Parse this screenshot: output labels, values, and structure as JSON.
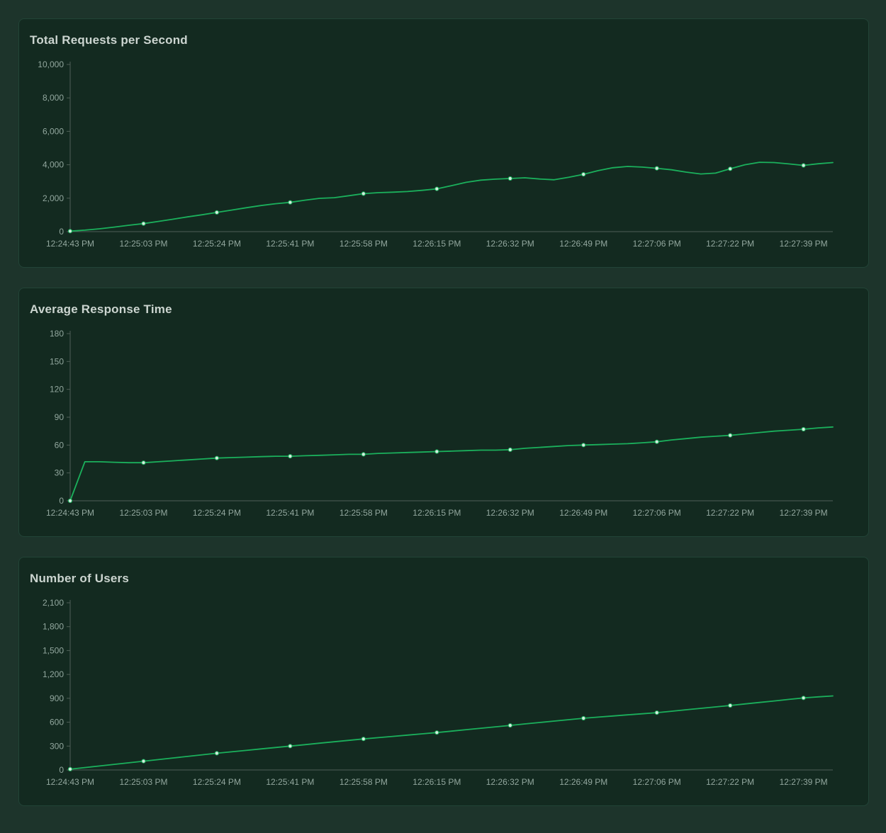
{
  "colors": {
    "page_background": "#1d342b",
    "card_background": "#132a20",
    "title_text": "#ccd5d0",
    "axis_text": "#92a79e",
    "axis_line": "#4f5f57",
    "marker_fill": "#d6eadf",
    "accent_green": "#1bb05c"
  },
  "chart_data": [
    {
      "type": "line",
      "title": "Total Requests per Second",
      "color": "#1bb05c",
      "ylim": [
        0,
        10000
      ],
      "y_ticks": [
        0,
        2000,
        4000,
        6000,
        8000,
        10000
      ],
      "x_labels": [
        "12:24:43 PM",
        "12:25:03 PM",
        "12:25:24 PM",
        "12:25:41 PM",
        "12:25:58 PM",
        "12:26:15 PM",
        "12:26:32 PM",
        "12:26:49 PM",
        "12:27:06 PM",
        "12:27:22 PM",
        "12:27:39 PM"
      ],
      "tick_indices": [
        0,
        5,
        10,
        15,
        20,
        25,
        30,
        35,
        40,
        45,
        50
      ],
      "marker_indices": [
        0,
        5,
        10,
        15,
        20,
        25,
        30,
        35,
        40,
        45,
        50
      ],
      "values": [
        30,
        90,
        170,
        270,
        380,
        480,
        610,
        740,
        880,
        1010,
        1150,
        1290,
        1430,
        1560,
        1670,
        1750,
        1880,
        1990,
        2030,
        2150,
        2270,
        2330,
        2360,
        2400,
        2470,
        2560,
        2750,
        2950,
        3080,
        3140,
        3180,
        3220,
        3150,
        3100,
        3250,
        3430,
        3650,
        3820,
        3900,
        3860,
        3790,
        3700,
        3560,
        3450,
        3500,
        3760,
        4000,
        4150,
        4130,
        4050,
        3960,
        4060,
        4130
      ],
      "grid": false,
      "legend_position": "none"
    },
    {
      "type": "line",
      "title": "Average Response Time",
      "color": "#1bb05c",
      "ylim": [
        0,
        180
      ],
      "y_ticks": [
        0,
        30,
        60,
        90,
        120,
        150,
        180
      ],
      "x_labels": [
        "12:24:43 PM",
        "12:25:03 PM",
        "12:25:24 PM",
        "12:25:41 PM",
        "12:25:58 PM",
        "12:26:15 PM",
        "12:26:32 PM",
        "12:26:49 PM",
        "12:27:06 PM",
        "12:27:22 PM",
        "12:27:39 PM"
      ],
      "tick_indices": [
        0,
        5,
        10,
        15,
        20,
        25,
        30,
        35,
        40,
        45,
        50
      ],
      "marker_indices": [
        0,
        5,
        10,
        15,
        20,
        25,
        30,
        35,
        40,
        45,
        50
      ],
      "values": [
        0,
        42,
        42,
        41.5,
        41,
        41,
        42,
        43,
        44,
        45,
        46,
        46.5,
        47,
        47.5,
        48,
        48,
        48.5,
        49,
        49.5,
        50,
        50,
        51,
        51.5,
        52,
        52.5,
        53,
        53.5,
        54,
        54.5,
        54.5,
        55,
        56.5,
        57.5,
        58.5,
        59.5,
        60,
        60.5,
        61,
        61.5,
        62.5,
        63.5,
        65.5,
        67,
        68.5,
        69.5,
        70.5,
        72,
        73.5,
        75,
        76,
        77,
        78.5,
        79.5
      ],
      "grid": false,
      "legend_position": "none"
    },
    {
      "type": "line",
      "title": "Number of Users",
      "color": "#1bb05c",
      "ylim": [
        0,
        2100
      ],
      "y_ticks": [
        0,
        300,
        600,
        900,
        1200,
        1500,
        1800,
        2100
      ],
      "x_labels": [
        "12:24:43 PM",
        "12:25:03 PM",
        "12:25:24 PM",
        "12:25:41 PM",
        "12:25:58 PM",
        "12:26:15 PM",
        "12:26:32 PM",
        "12:26:49 PM",
        "12:27:06 PM",
        "12:27:22 PM",
        "12:27:39 PM"
      ],
      "tick_indices": [
        0,
        5,
        10,
        15,
        20,
        25,
        30,
        35,
        40,
        45,
        50
      ],
      "marker_indices": [
        0,
        5,
        10,
        15,
        20,
        25,
        30,
        35,
        40,
        45,
        50
      ],
      "values": [
        10,
        30,
        50,
        70,
        90,
        110,
        130,
        150,
        170,
        190,
        210,
        228,
        246,
        264,
        282,
        300,
        318,
        336,
        354,
        372,
        390,
        406,
        422,
        438,
        454,
        470,
        488,
        506,
        524,
        542,
        560,
        578,
        596,
        614,
        632,
        650,
        664,
        678,
        692,
        706,
        720,
        738,
        756,
        774,
        792,
        810,
        829,
        848,
        867,
        886,
        905,
        918,
        930
      ],
      "grid": false,
      "legend_position": "none"
    }
  ]
}
